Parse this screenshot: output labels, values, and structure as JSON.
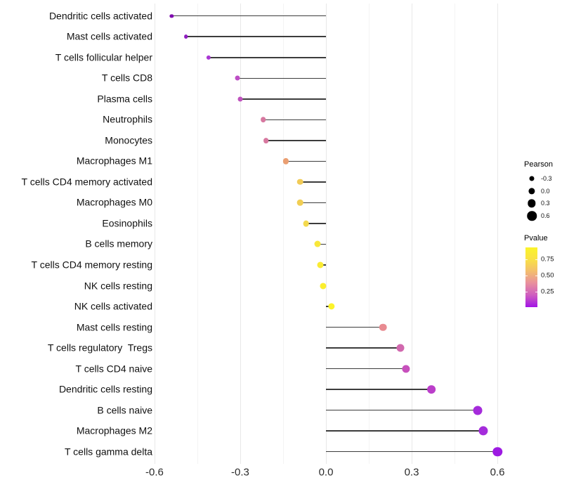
{
  "chart_data": {
    "type": "lollipop",
    "orientation": "horizontal",
    "title": "",
    "xlabel": "",
    "ylabel": "",
    "xlim": [
      -0.6,
      0.66
    ],
    "grid": true,
    "legend_position": "right",
    "x_ticks": [
      {
        "value": -0.6,
        "label": "-0.6"
      },
      {
        "value": -0.3,
        "label": "-0.3"
      },
      {
        "value": 0.0,
        "label": "0.0"
      },
      {
        "value": 0.3,
        "label": "0.3"
      },
      {
        "value": 0.6,
        "label": "0.6"
      }
    ],
    "rows": [
      {
        "label": "Dendritic cells activated",
        "pearson": -0.54,
        "color": "#7F0BAE"
      },
      {
        "label": "Mast cells activated",
        "pearson": -0.49,
        "color": "#8F1DC0"
      },
      {
        "label": "T cells follicular helper",
        "pearson": -0.41,
        "color": "#A937D3"
      },
      {
        "label": "T cells CD8",
        "pearson": -0.31,
        "color": "#BD4EC5"
      },
      {
        "label": "Plasma cells",
        "pearson": -0.3,
        "color": "#BF52BE"
      },
      {
        "label": "Neutrophils",
        "pearson": -0.22,
        "color": "#D778A0"
      },
      {
        "label": "Monocytes",
        "pearson": -0.21,
        "color": "#D7789F"
      },
      {
        "label": "Macrophages M1",
        "pearson": -0.14,
        "color": "#EA9F72"
      },
      {
        "label": "T cells CD4 memory activated",
        "pearson": -0.09,
        "color": "#F1CB57"
      },
      {
        "label": "Macrophages M0",
        "pearson": -0.09,
        "color": "#F1CE53"
      },
      {
        "label": "Eosinophils",
        "pearson": -0.07,
        "color": "#F3D94E"
      },
      {
        "label": "B cells memory",
        "pearson": -0.03,
        "color": "#F8E73A"
      },
      {
        "label": "T cells CD4 memory resting",
        "pearson": -0.02,
        "color": "#FAEB33"
      },
      {
        "label": "NK cells resting",
        "pearson": -0.01,
        "color": "#FBEE2E"
      },
      {
        "label": "NK cells activated",
        "pearson": 0.02,
        "color": "#FCF32A"
      },
      {
        "label": "Mast cells resting",
        "pearson": 0.2,
        "color": "#E88B91"
      },
      {
        "label": "T cells regulatory  Tregs",
        "pearson": 0.26,
        "color": "#D168AE"
      },
      {
        "label": "T cells CD4 naive",
        "pearson": 0.28,
        "color": "#C750BC"
      },
      {
        "label": "Dendritic cells resting",
        "pearson": 0.37,
        "color": "#BB3ECA"
      },
      {
        "label": "B cells naive",
        "pearson": 0.53,
        "color": "#A52BDB"
      },
      {
        "label": "Macrophages M2",
        "pearson": 0.55,
        "color": "#A42CDB"
      },
      {
        "label": "T cells gamma delta",
        "pearson": 0.6,
        "color": "#9D1AE2"
      }
    ],
    "size_legend": {
      "title": "Pearson",
      "values": [
        -0.3,
        0.0,
        0.3,
        0.6
      ],
      "labels": [
        "-0.3",
        "0.0",
        "0.3",
        "0.6"
      ],
      "dot_color": "#000000"
    },
    "color_legend": {
      "title": "Pvalue",
      "tick_values": [
        0.75,
        0.5,
        0.25
      ],
      "tick_labels": [
        "0.75",
        "0.50",
        "0.25"
      ],
      "gradient_bottom_to_top": [
        "#A214E6",
        "#CE5DC0",
        "#E88F9E",
        "#F3BE6E",
        "#F9E145",
        "#FBF42A"
      ]
    }
  }
}
